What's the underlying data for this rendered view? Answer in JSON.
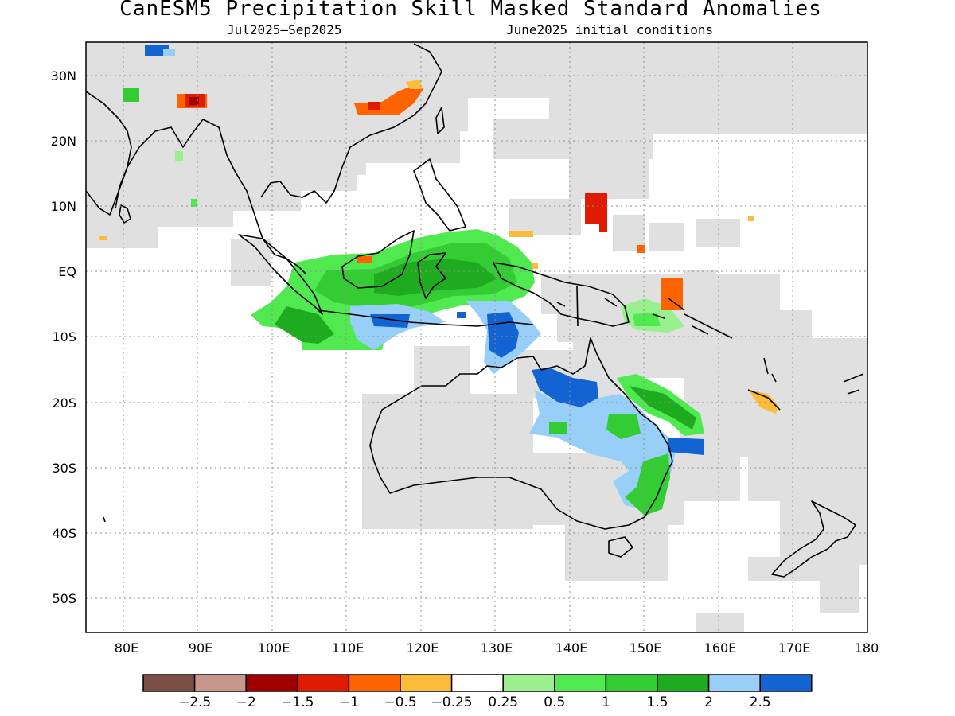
{
  "title": "CanESM5 Precipitation Skill Masked Standard Anomalies",
  "subtitle_left": "Jul2025–Sep2025",
  "subtitle_right": "June2025 initial conditions",
  "map": {
    "lon_range": [
      75,
      180
    ],
    "lat_range": [
      -55,
      35
    ],
    "lat_labels": [
      "30N",
      "20N",
      "10N",
      "EQ",
      "10S",
      "20S",
      "30S",
      "40S",
      "50S"
    ],
    "lon_labels": [
      "80E",
      "90E",
      "100E",
      "110E",
      "120E",
      "130E",
      "140E",
      "150E",
      "160E",
      "170E",
      "180"
    ],
    "mask_color": "#e0e0e0",
    "coastline_color": "#000000",
    "grid": true
  },
  "colorbar": {
    "colors": [
      "#7b4f46",
      "#c8978b",
      "#a10000",
      "#e01c00",
      "#fd6400",
      "#fdbb3c",
      "#ffffff",
      "#9af08f",
      "#50ea50",
      "#33cc33",
      "#1fab1f",
      "#98cff8",
      "#1463d2"
    ],
    "labels": [
      "−2.5",
      "−2",
      "−1.5",
      "−1",
      "−0.5",
      "−0.25",
      "0.25",
      "0.5",
      "1",
      "1.5",
      "2",
      "2.5"
    ]
  }
}
